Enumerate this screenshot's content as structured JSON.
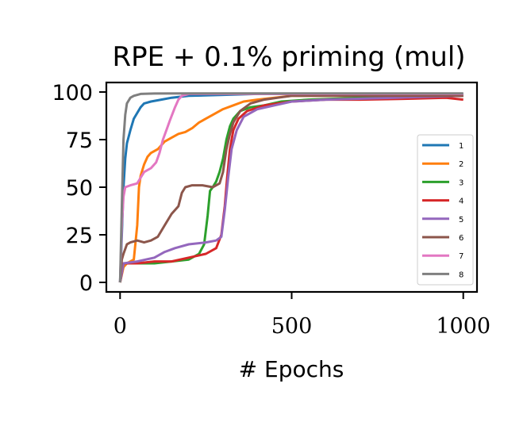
{
  "chart_data": {
    "type": "line",
    "title": "RPE + 0.1% priming (mul)",
    "xlabel": "# Epochs",
    "ylabel": "",
    "xlim": [
      -40,
      1040
    ],
    "ylim": [
      -5,
      105
    ],
    "xticks": [
      0,
      500,
      1000
    ],
    "xtick_labels": [
      "0",
      "500",
      "1000"
    ],
    "yticks": [
      0,
      25,
      50,
      75,
      100
    ],
    "ytick_labels": [
      "0",
      "25",
      "50",
      "75",
      "100"
    ],
    "grid": false,
    "legend_position": "center-right",
    "series": [
      {
        "name": "1",
        "color": "#1f77b4",
        "points": [
          [
            0,
            0
          ],
          [
            5,
            25
          ],
          [
            10,
            50
          ],
          [
            15,
            65
          ],
          [
            20,
            73
          ],
          [
            30,
            80
          ],
          [
            40,
            86
          ],
          [
            50,
            89
          ],
          [
            60,
            92
          ],
          [
            70,
            94
          ],
          [
            90,
            95
          ],
          [
            120,
            96
          ],
          [
            150,
            97
          ],
          [
            200,
            98
          ],
          [
            300,
            98.5
          ],
          [
            400,
            99
          ],
          [
            500,
            99
          ],
          [
            700,
            99
          ],
          [
            1000,
            99
          ]
        ]
      },
      {
        "name": "2",
        "color": "#ff7f0e",
        "points": [
          [
            0,
            0
          ],
          [
            10,
            8
          ],
          [
            20,
            10
          ],
          [
            40,
            12
          ],
          [
            50,
            30
          ],
          [
            55,
            50
          ],
          [
            60,
            56
          ],
          [
            70,
            62
          ],
          [
            80,
            66
          ],
          [
            90,
            68
          ],
          [
            110,
            70
          ],
          [
            130,
            74
          ],
          [
            150,
            76
          ],
          [
            170,
            78
          ],
          [
            190,
            79
          ],
          [
            210,
            81
          ],
          [
            230,
            84
          ],
          [
            250,
            86
          ],
          [
            270,
            88
          ],
          [
            300,
            91
          ],
          [
            330,
            93
          ],
          [
            360,
            95
          ],
          [
            400,
            96
          ],
          [
            450,
            97
          ],
          [
            500,
            98
          ],
          [
            1000,
            98
          ]
        ]
      },
      {
        "name": "3",
        "color": "#2ca02c",
        "points": [
          [
            0,
            0
          ],
          [
            10,
            10
          ],
          [
            50,
            10
          ],
          [
            100,
            10
          ],
          [
            150,
            11
          ],
          [
            200,
            12
          ],
          [
            230,
            15
          ],
          [
            245,
            20
          ],
          [
            255,
            35
          ],
          [
            262,
            48
          ],
          [
            270,
            50
          ],
          [
            280,
            53
          ],
          [
            290,
            58
          ],
          [
            300,
            65
          ],
          [
            310,
            75
          ],
          [
            320,
            82
          ],
          [
            330,
            86
          ],
          [
            350,
            90
          ],
          [
            380,
            92
          ],
          [
            420,
            93
          ],
          [
            470,
            95
          ],
          [
            550,
            96
          ],
          [
            700,
            97
          ],
          [
            1000,
            98
          ]
        ]
      },
      {
        "name": "4",
        "color": "#d62728",
        "points": [
          [
            0,
            0
          ],
          [
            10,
            10
          ],
          [
            50,
            10
          ],
          [
            100,
            11
          ],
          [
            150,
            11
          ],
          [
            200,
            13
          ],
          [
            250,
            15
          ],
          [
            280,
            18
          ],
          [
            295,
            25
          ],
          [
            305,
            40
          ],
          [
            312,
            55
          ],
          [
            320,
            70
          ],
          [
            330,
            80
          ],
          [
            345,
            86
          ],
          [
            370,
            90
          ],
          [
            420,
            93
          ],
          [
            500,
            95
          ],
          [
            600,
            96
          ],
          [
            700,
            96
          ],
          [
            850,
            96.5
          ],
          [
            950,
            97
          ],
          [
            1000,
            96
          ]
        ]
      },
      {
        "name": "5",
        "color": "#9467bd",
        "points": [
          [
            0,
            0
          ],
          [
            10,
            10
          ],
          [
            50,
            11
          ],
          [
            100,
            13
          ],
          [
            130,
            16
          ],
          [
            160,
            18
          ],
          [
            200,
            20
          ],
          [
            250,
            21
          ],
          [
            280,
            22
          ],
          [
            295,
            24
          ],
          [
            305,
            38
          ],
          [
            315,
            55
          ],
          [
            325,
            70
          ],
          [
            340,
            80
          ],
          [
            360,
            87
          ],
          [
            400,
            91
          ],
          [
            450,
            93
          ],
          [
            500,
            95
          ],
          [
            600,
            96
          ],
          [
            800,
            97
          ],
          [
            1000,
            98
          ]
        ]
      },
      {
        "name": "6",
        "color": "#8c564b",
        "points": [
          [
            0,
            0
          ],
          [
            5,
            12
          ],
          [
            10,
            15
          ],
          [
            20,
            20
          ],
          [
            30,
            21
          ],
          [
            50,
            22
          ],
          [
            70,
            21
          ],
          [
            90,
            22
          ],
          [
            110,
            24
          ],
          [
            130,
            30
          ],
          [
            150,
            36
          ],
          [
            170,
            40
          ],
          [
            180,
            47
          ],
          [
            190,
            50
          ],
          [
            210,
            51
          ],
          [
            240,
            51
          ],
          [
            270,
            50
          ],
          [
            290,
            52
          ],
          [
            300,
            58
          ],
          [
            310,
            70
          ],
          [
            320,
            78
          ],
          [
            330,
            84
          ],
          [
            350,
            90
          ],
          [
            380,
            94
          ],
          [
            420,
            96
          ],
          [
            460,
            97
          ],
          [
            500,
            98
          ],
          [
            1000,
            98
          ]
        ]
      },
      {
        "name": "7",
        "color": "#e377c2",
        "points": [
          [
            0,
            0
          ],
          [
            5,
            30
          ],
          [
            10,
            45
          ],
          [
            15,
            50
          ],
          [
            30,
            51
          ],
          [
            50,
            52
          ],
          [
            60,
            55
          ],
          [
            70,
            58
          ],
          [
            90,
            60
          ],
          [
            105,
            63
          ],
          [
            115,
            68
          ],
          [
            125,
            75
          ],
          [
            135,
            80
          ],
          [
            145,
            85
          ],
          [
            160,
            92
          ],
          [
            170,
            96
          ],
          [
            180,
            98
          ],
          [
            200,
            99
          ],
          [
            1000,
            99
          ]
        ]
      },
      {
        "name": "8",
        "color": "#7f7f7f",
        "points": [
          [
            0,
            0
          ],
          [
            5,
            40
          ],
          [
            10,
            75
          ],
          [
            15,
            88
          ],
          [
            20,
            94
          ],
          [
            30,
            97
          ],
          [
            40,
            98
          ],
          [
            60,
            99
          ],
          [
            100,
            99.2
          ],
          [
            200,
            99.3
          ],
          [
            1000,
            99.3
          ]
        ]
      }
    ]
  }
}
